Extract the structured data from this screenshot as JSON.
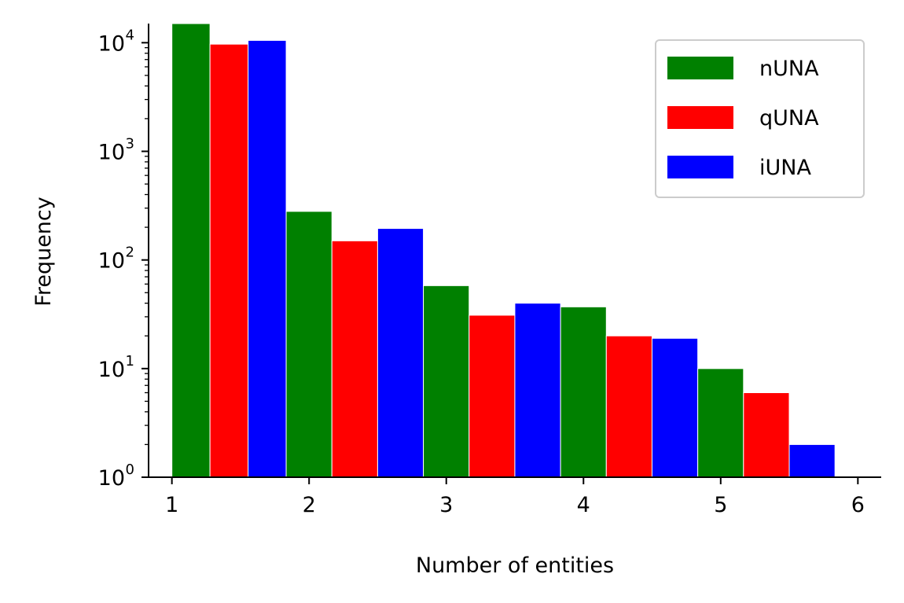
{
  "chart_data": {
    "type": "bar",
    "yscale": "log",
    "xlabel": "Number of entities",
    "ylabel": "Frequency",
    "xlim": [
      0.83,
      6.17
    ],
    "ylim": [
      1,
      15000
    ],
    "x_ticks": [
      1,
      2,
      3,
      4,
      5,
      6
    ],
    "y_ticks": [
      {
        "value": 1,
        "base": "10",
        "exp": "0"
      },
      {
        "value": 10,
        "base": "10",
        "exp": "1"
      },
      {
        "value": 100,
        "base": "10",
        "exp": "2"
      },
      {
        "value": 1000,
        "base": "10",
        "exp": "3"
      },
      {
        "value": 10000,
        "base": "10",
        "exp": "4"
      }
    ],
    "bins": [
      [
        1,
        1.833
      ],
      [
        1.833,
        2.833
      ],
      [
        2.833,
        3.833
      ],
      [
        3.833,
        4.833
      ],
      [
        4.833,
        5.833
      ]
    ],
    "series": [
      {
        "name": "nUNA",
        "color": "#008000",
        "values": [
          15000,
          280,
          58,
          37,
          10
        ]
      },
      {
        "name": "qUNA",
        "color": "#ff0000",
        "values": [
          9700,
          150,
          31,
          20,
          6
        ]
      },
      {
        "name": "iUNA",
        "color": "#0000ff",
        "values": [
          10500,
          195,
          40,
          19,
          2
        ]
      }
    ],
    "grid": false,
    "legend_position": "top-right"
  }
}
